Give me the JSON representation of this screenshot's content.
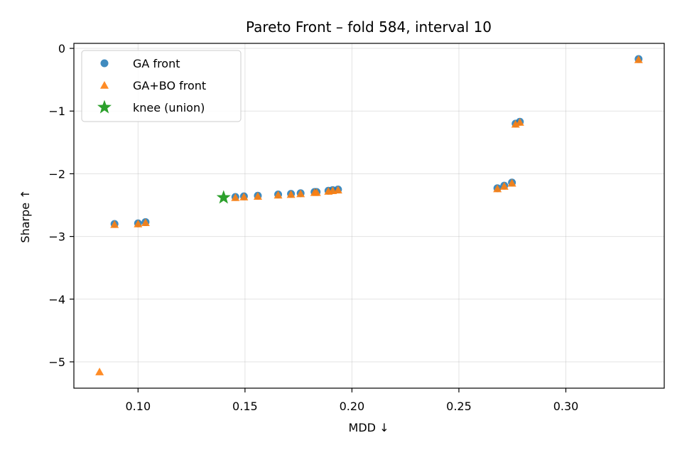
{
  "chart_data": {
    "type": "scatter",
    "title": "Pareto Front – fold 584, interval 10",
    "xlabel": "MDD ↓",
    "ylabel": "Sharpe ↑",
    "xlim": [
      0.07,
      0.346
    ],
    "ylim": [
      -5.42,
      0.08
    ],
    "xticks": [
      0.1,
      0.15,
      0.2,
      0.25,
      0.3
    ],
    "xtick_labels": [
      "0.10",
      "0.15",
      "0.20",
      "0.25",
      "0.30"
    ],
    "yticks": [
      0,
      -1,
      -2,
      -3,
      -4,
      -5
    ],
    "ytick_labels": [
      "0",
      "−1",
      "−2",
      "−3",
      "−4",
      "−5"
    ],
    "grid": true,
    "legend_position": "top-left",
    "series": [
      {
        "name": "GA front",
        "marker": "circle",
        "color": "#1f77b4",
        "x": [
          0.089,
          0.1,
          0.1035,
          0.1455,
          0.1495,
          0.156,
          0.1655,
          0.1715,
          0.176,
          0.1825,
          0.1835,
          0.189,
          0.191,
          0.1935,
          0.268,
          0.2712,
          0.2748,
          0.2765,
          0.2785,
          0.334
        ],
        "y": [
          -2.8,
          -2.79,
          -2.77,
          -2.37,
          -2.36,
          -2.35,
          -2.33,
          -2.32,
          -2.31,
          -2.29,
          -2.29,
          -2.27,
          -2.26,
          -2.25,
          -2.23,
          -2.19,
          -2.14,
          -1.2,
          -1.17,
          -0.17
        ]
      },
      {
        "name": "GA+BO front",
        "marker": "triangle",
        "color": "#ff7f0e",
        "x": [
          0.082,
          0.089,
          0.1,
          0.1035,
          0.1455,
          0.1495,
          0.156,
          0.1655,
          0.1715,
          0.176,
          0.1825,
          0.1835,
          0.189,
          0.191,
          0.1935,
          0.268,
          0.2712,
          0.2748,
          0.2765,
          0.2785,
          0.334
        ],
        "y": [
          -5.16,
          -2.81,
          -2.8,
          -2.78,
          -2.38,
          -2.37,
          -2.36,
          -2.34,
          -2.33,
          -2.32,
          -2.3,
          -2.3,
          -2.28,
          -2.27,
          -2.26,
          -2.24,
          -2.2,
          -2.15,
          -1.21,
          -1.18,
          -0.18
        ]
      },
      {
        "name": "knee (union)",
        "marker": "star",
        "color": "#2ca02c",
        "x": [
          0.14
        ],
        "y": [
          -2.38
        ]
      }
    ]
  }
}
